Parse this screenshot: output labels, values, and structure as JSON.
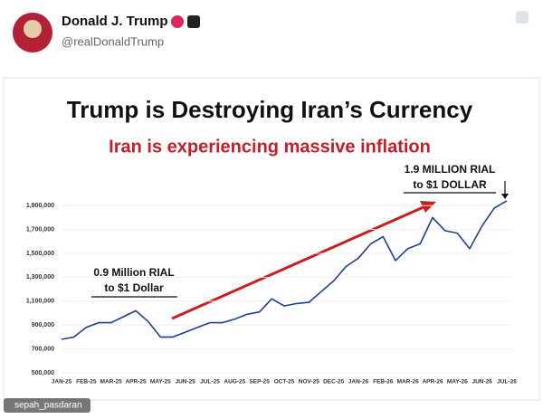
{
  "header": {
    "name": "Donald J. Trump",
    "handle": "@realDonaldTrump"
  },
  "watermark": "sepah_pasdaran",
  "chart_data": {
    "type": "line",
    "title": "Trump is Destroying Iran’s Currency",
    "subtitle": "Iran is experiencing massive inflation",
    "annotations": [
      "0.9 Million RIAL",
      "to $1 Dollar",
      "1.9 MILLION RIAL",
      "to $1 DOLLAR"
    ],
    "categories": [
      "JAN-25",
      null,
      "FEB-25",
      null,
      "MAR-25",
      null,
      "APR-25",
      null,
      "MAY-25",
      null,
      "JUN-25",
      null,
      "JUL-25",
      null,
      "AUG-25",
      null,
      "SEP-25",
      null,
      "OCT-25",
      null,
      "NOV-25",
      null,
      "DEC-25",
      null,
      "JAN-26",
      null,
      "FEB-26",
      null,
      "MAR-26",
      null,
      "APR-26",
      null,
      "MAY-26",
      null,
      "JUN-26",
      null,
      "JUL-26"
    ],
    "series": [
      {
        "color": "#1f3f8f",
        "values": [
          780000,
          800000,
          880000,
          920000,
          920000,
          970000,
          1020000,
          930000,
          800000,
          800000,
          840000,
          880000,
          920000,
          920000,
          950000,
          990000,
          1010000,
          1120000,
          1060000,
          1080000,
          1090000,
          1180000,
          1270000,
          1390000,
          1460000,
          1580000,
          1640000,
          1440000,
          1540000,
          1580000,
          1800000,
          1690000,
          1670000,
          1540000,
          1730000,
          1880000,
          1940000
        ]
      }
    ],
    "ylim": [
      500000,
      2000000
    ],
    "yticks": [
      {
        "value": 500000,
        "label": "500,000"
      },
      {
        "value": 700000,
        "label": "700,000"
      },
      {
        "value": 900000,
        "label": "900,000"
      },
      {
        "value": 1100000,
        "label": "1,100,000"
      },
      {
        "value": 1300000,
        "label": "1,300,000"
      },
      {
        "value": 1500000,
        "label": "1,500,000"
      },
      {
        "value": 1700000,
        "label": "1,700,000"
      },
      {
        "value": 1900000,
        "label": "1,900,000"
      }
    ],
    "grid": true
  }
}
